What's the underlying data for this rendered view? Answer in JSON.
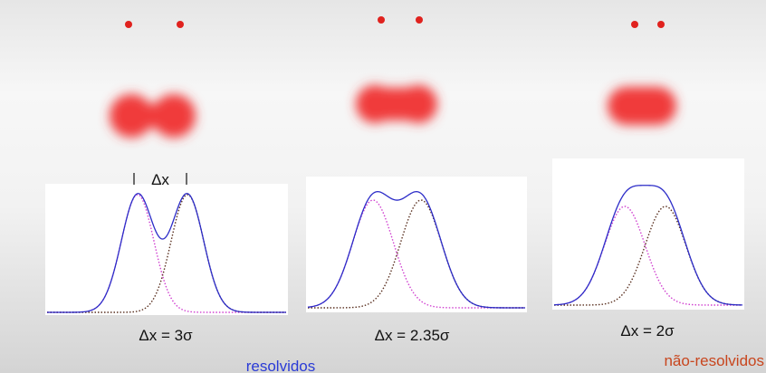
{
  "delta_label": "Δx",
  "panels": [
    {
      "caption": "Δx = 3σ"
    },
    {
      "caption": "Δx = 2.35σ"
    },
    {
      "caption": "Δx = 2σ"
    }
  ],
  "labels": {
    "resolved": "resolvidos",
    "unresolved": "não-resolvidos"
  }
}
